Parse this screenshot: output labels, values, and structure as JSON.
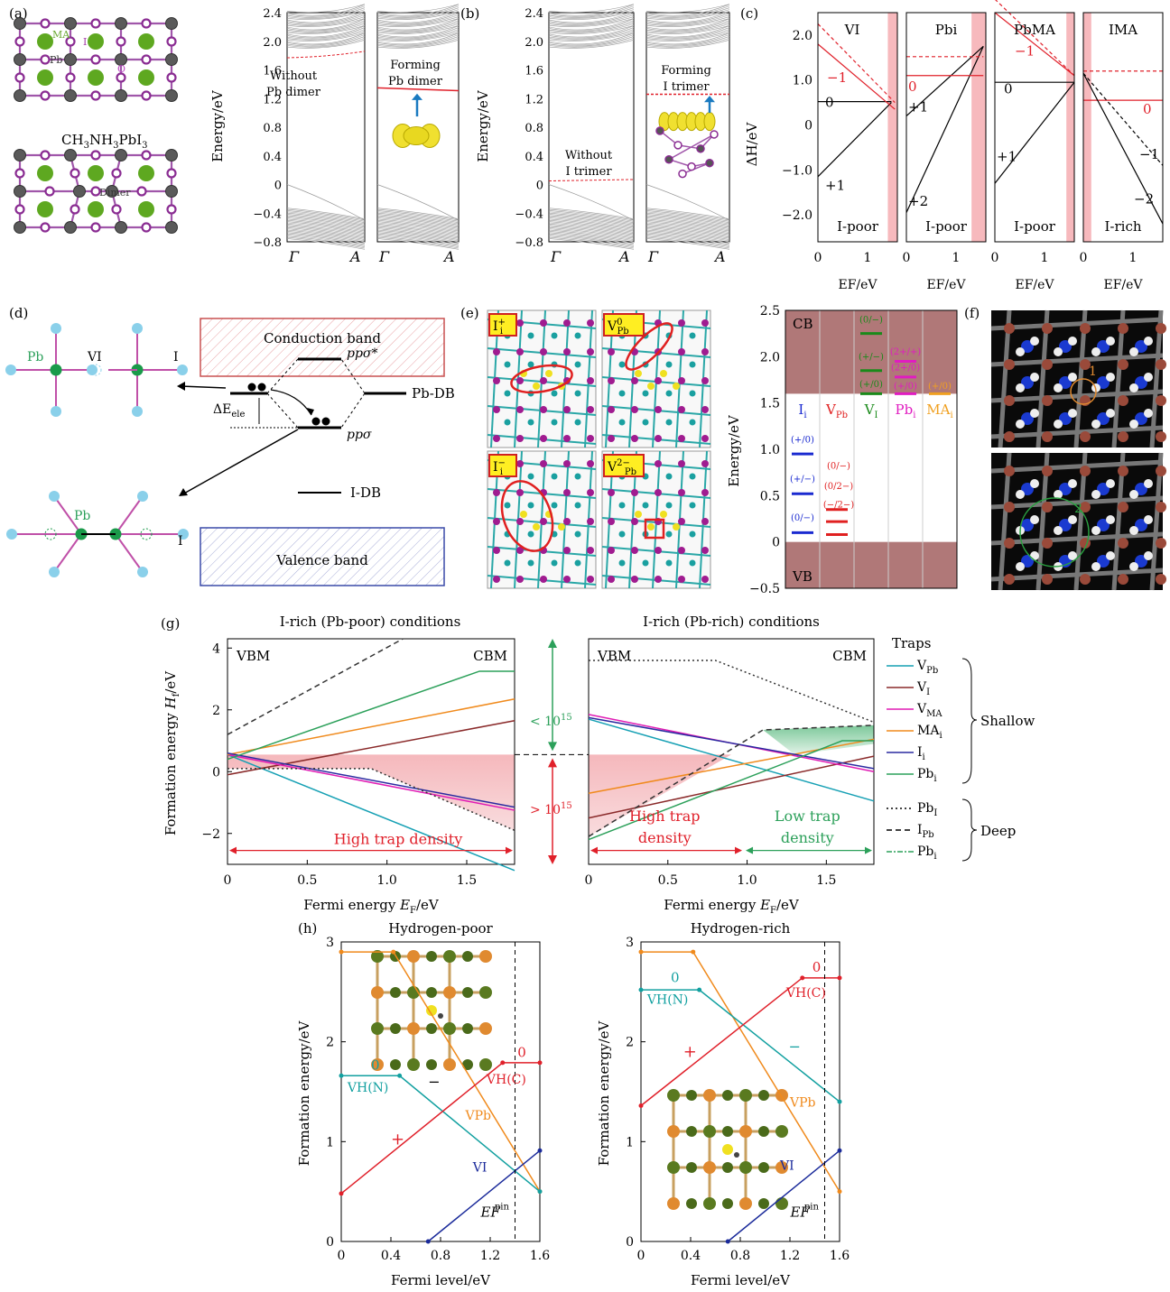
{
  "panel_labels": {
    "a": "(a)",
    "b": "(b)",
    "c": "(c)",
    "d": "(d)",
    "e": "(e)",
    "f": "(f)",
    "g": "(g)",
    "h": "(h)"
  },
  "colors": {
    "red": "#e0202a",
    "pink": "#f7b9bd",
    "green": "#2ca05a",
    "teal": "#12a0a0",
    "orange": "#f08a1c",
    "navy": "#1a2a9a",
    "magenta": "#e01cb4",
    "brown": "#8a2a2a",
    "violet": "#9b3aa3",
    "cyan": "#8ad0ea",
    "darkred": "#8e4444"
  },
  "a": {
    "labels": {
      "ma": "MA",
      "i": "I",
      "pb": "Pb",
      "ov": "O",
      "ov_sub": "VI",
      "formula": "CH3NH3PbI3",
      "dimer": "Dimer"
    }
  },
  "bands": {
    "ylabel": "Energy/eV",
    "yticks": [
      "2.4",
      "2.0",
      "1.6",
      "1.2",
      "0.8",
      "0.4",
      "0",
      "−0.4",
      "−0.8"
    ],
    "xticks": [
      "Γ",
      "A"
    ],
    "p1": {
      "l1": "Without",
      "l2": "Pb dimer"
    },
    "p2": {
      "l1": "Forming",
      "l2": "Pb dimer"
    },
    "p3": {
      "l1": "Without",
      "l2": "I trimer"
    },
    "p4": {
      "l1": "Forming",
      "l2": "I trimer"
    }
  },
  "c": {
    "ylabel": "ΔH/eV",
    "yticks": [
      "2.0",
      "1.0",
      "0",
      "−1.0",
      "−2.0"
    ],
    "xlabel": "EF/eV",
    "xticks": [
      "0",
      "1"
    ],
    "p1": {
      "title": "VI",
      "cond": "I-poor",
      "q": [
        "−1",
        "0",
        "+1"
      ]
    },
    "p2": {
      "title": "Pbi",
      "cond": "I-poor",
      "q": [
        "0",
        "+1",
        "+2"
      ]
    },
    "p3": {
      "title": "PbMA",
      "cond": "I-poor",
      "q": [
        "−1",
        "0",
        "+1"
      ]
    },
    "p4": {
      "title": "IMA",
      "cond": "I-rich",
      "q": [
        "0",
        "−1",
        "−2"
      ]
    }
  },
  "d": {
    "cb": "Conduction band",
    "vb": "Valence band",
    "pp_star": "ppσ*",
    "pp": "ppσ",
    "pbdb": "Pb-DB",
    "idb": "I-DB",
    "de": "ΔEele",
    "pb": "Pb",
    "vi": "VI",
    "i": "I"
  },
  "e": {
    "tags": [
      "I+i",
      "V0Pb",
      "I−i",
      "V2−Pb"
    ],
    "ylabel": "Energy/eV",
    "yticks": [
      "2.5",
      "2.0",
      "1.5",
      "1.0",
      "0.5",
      "0",
      "−0.5"
    ],
    "cb": "CB",
    "vb": "VB",
    "cols": [
      "Ii",
      "VPb",
      "VI",
      "Pbi",
      "MAi"
    ],
    "levels": {
      "Ii": [
        "(+/0)",
        "(+/−)",
        "(0/−)"
      ],
      "VPb": [
        "(0/−)",
        "(0/2−)",
        "(−/2−)"
      ],
      "VI": [
        "(0/−)",
        "(+/−)",
        "(+/0)"
      ],
      "Pbi": [
        "(2+/+)",
        "(2+/0)",
        "(+/0)"
      ],
      "MAi": [
        "(+/0)"
      ]
    }
  },
  "f": {
    "n1": "1",
    "n2": "2"
  },
  "g": {
    "title_left": "I-rich (Pb-poor) conditions",
    "title_right": "I-rich (Pb-rich) conditions",
    "ylabel": "Formation energy Hf/eV",
    "xlabel": "Fermi energy EF/eV",
    "xticks": [
      "0",
      "0.5",
      "1.0",
      "1.5"
    ],
    "yticks": [
      "4",
      "2",
      "0",
      "−2"
    ],
    "vbm": "VBM",
    "cbm": "CBM",
    "high": "High trap density",
    "high2a": "High trap",
    "high2b": "density",
    "low_a": "Low trap",
    "low_b": "density",
    "lt": "< 1015",
    "gt": "> 1015",
    "legend_title": "Traps",
    "shallow": [
      "VPb",
      "VI",
      "VMA",
      "MAi",
      "Ii",
      "Pbi"
    ],
    "deep": [
      "PbI",
      "IPb",
      "Pbi"
    ],
    "shallow_label": "Shallow",
    "deep_label": "Deep"
  },
  "chart_data": [
    {
      "type": "line",
      "title": "I-rich (Pb-poor) conditions",
      "xlabel": "Fermi energy EF/eV",
      "ylabel": "Formation energy Hf/eV",
      "xlim": [
        0,
        1.8
      ],
      "ylim": [
        -3,
        4.3
      ],
      "series": [
        {
          "name": "VPb",
          "x": [
            0,
            1.8
          ],
          "y": [
            0.55,
            -3.2
          ]
        },
        {
          "name": "VI",
          "x": [
            0,
            1.8
          ],
          "y": [
            -0.1,
            1.65
          ]
        },
        {
          "name": "VMA",
          "x": [
            0,
            1.8
          ],
          "y": [
            0.55,
            -1.25
          ]
        },
        {
          "name": "MAi",
          "x": [
            0,
            1.8
          ],
          "y": [
            0.55,
            2.35
          ]
        },
        {
          "name": "Ii",
          "x": [
            0,
            1.8
          ],
          "y": [
            0.6,
            -1.15
          ]
        },
        {
          "name": "Pbi",
          "x": [
            0,
            1.58,
            1.8
          ],
          "y": [
            0.4,
            3.25,
            3.25
          ]
        },
        {
          "name": "IPb",
          "x": [
            0,
            1.1
          ],
          "y": [
            1.2,
            4.3
          ]
        },
        {
          "name": "PbI",
          "x": [
            0,
            0.25,
            0.9,
            1.8
          ],
          "y": [
            0.1,
            0.1,
            0.1,
            -1.9
          ]
        }
      ]
    },
    {
      "type": "line",
      "title": "I-rich (Pb-rich) conditions",
      "xlabel": "Fermi energy EF/eV",
      "ylabel": "Formation energy Hf/eV",
      "xlim": [
        0,
        1.8
      ],
      "ylim": [
        -3,
        4.3
      ],
      "series": [
        {
          "name": "VPb",
          "x": [
            0,
            1.8
          ],
          "y": [
            1.7,
            -0.95
          ]
        },
        {
          "name": "VI",
          "x": [
            0,
            1.8
          ],
          "y": [
            -1.5,
            0.5
          ]
        },
        {
          "name": "VMA",
          "x": [
            0,
            1.8
          ],
          "y": [
            1.85,
            0.0
          ]
        },
        {
          "name": "MAi",
          "x": [
            0,
            1.8
          ],
          "y": [
            -0.7,
            1.05
          ]
        },
        {
          "name": "Ii",
          "x": [
            0,
            1.8
          ],
          "y": [
            1.75,
            0.1
          ]
        },
        {
          "name": "Pbi",
          "x": [
            0,
            1.6,
            1.8
          ],
          "y": [
            -2.2,
            1.0,
            1.0
          ]
        },
        {
          "name": "PbI",
          "x": [
            0,
            0.8,
            1.8
          ],
          "y": [
            3.6,
            3.6,
            1.6
          ]
        },
        {
          "name": "IPb",
          "x": [
            0,
            1.1,
            1.8
          ],
          "y": [
            -2.1,
            1.35,
            1.5
          ]
        }
      ]
    },
    {
      "type": "line",
      "title": "Hydrogen-poor",
      "xlabel": "Fermi level/eV",
      "ylabel": "Formation energy/eV",
      "xlim": [
        0,
        1.6
      ],
      "ylim": [
        0,
        3
      ],
      "series": [
        {
          "name": "VPb",
          "x": [
            0,
            0.42,
            1.6
          ],
          "y": [
            2.9,
            2.9,
            0.5
          ]
        },
        {
          "name": "VH(N)",
          "x": [
            0,
            0.47,
            1.6
          ],
          "y": [
            1.66,
            1.66,
            0.5
          ]
        },
        {
          "name": "VH(C)",
          "x": [
            0,
            1.3,
            1.6
          ],
          "y": [
            0.48,
            1.79,
            1.79
          ]
        },
        {
          "name": "VI",
          "x": [
            0.7,
            1.6
          ],
          "y": [
            0,
            0.91
          ]
        }
      ]
    },
    {
      "type": "line",
      "title": "Hydrogen-rich",
      "xlabel": "Fermi level/eV",
      "ylabel": "Formation energy/eV",
      "xlim": [
        0,
        1.6
      ],
      "ylim": [
        0,
        3
      ],
      "series": [
        {
          "name": "VPb",
          "x": [
            0,
            0.42,
            1.6
          ],
          "y": [
            2.9,
            2.9,
            0.5
          ]
        },
        {
          "name": "VH(N)",
          "x": [
            0,
            0.47,
            1.6
          ],
          "y": [
            2.52,
            2.52,
            1.4
          ]
        },
        {
          "name": "VH(C)",
          "x": [
            0,
            1.3,
            1.6
          ],
          "y": [
            1.36,
            2.64,
            2.64
          ]
        },
        {
          "name": "VI",
          "x": [
            0.7,
            1.6
          ],
          "y": [
            0,
            0.91
          ]
        }
      ]
    }
  ],
  "h": {
    "left_title": "Hydrogen-poor",
    "right_title": "Hydrogen-rich",
    "ylabel": "Formation energy/eV",
    "xlabel": "Fermi level/eV",
    "xticks": [
      "0",
      "0.4",
      "0.8",
      "1.2",
      "1.6"
    ],
    "yticks": [
      "0",
      "1",
      "2",
      "3"
    ],
    "vpb": "VPb",
    "vhn": "VH(N)",
    "vhc": "VH(C)",
    "vi": "VI",
    "efpin": "EF",
    "pin": "pin",
    "zero": "0",
    "plus": "+",
    "minus": "−"
  }
}
